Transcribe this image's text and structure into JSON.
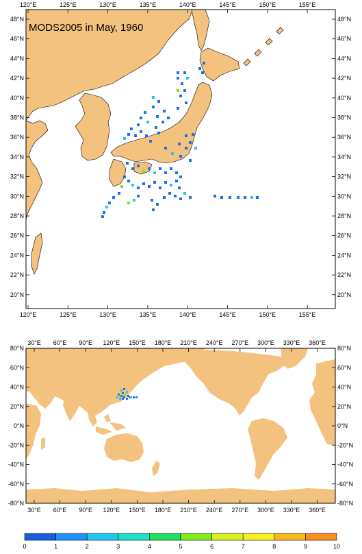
{
  "title": "MODS2005 in May, 1960",
  "top_map": {
    "lon_labels": [
      "120°E",
      "125°E",
      "130°E",
      "135°E",
      "140°E",
      "145°E",
      "150°E",
      "155°E"
    ],
    "lat_labels": [
      "48°N",
      "46°N",
      "44°N",
      "42°N",
      "40°N",
      "38°N",
      "36°N",
      "34°N",
      "32°N",
      "30°N",
      "28°N",
      "26°N",
      "24°N",
      "22°N",
      "20°N"
    ]
  },
  "bottom_map": {
    "lon_labels": [
      "30°E",
      "60°E",
      "90°E",
      "120°E",
      "150°E",
      "180°E",
      "210°E",
      "240°E",
      "270°E",
      "300°E",
      "330°E",
      "360°E"
    ],
    "lat_labels": [
      "80°N",
      "60°N",
      "40°N",
      "20°N",
      "0°N",
      "-20°N",
      "-40°N",
      "-60°N",
      "-80°N"
    ]
  },
  "colorbar": {
    "labels": [
      "0",
      "1",
      "2",
      "3",
      "4",
      "5",
      "6",
      "7",
      "8",
      "9",
      "10"
    ],
    "colors": [
      "#1a5fd8",
      "#1e90ff",
      "#20c8f0",
      "#20e0c8",
      "#20e060",
      "#80ec20",
      "#d8f020",
      "#f8f020",
      "#f8b820",
      "#f89020",
      "#e84810"
    ]
  },
  "colors": {
    "land": "#f2c27e",
    "obs_low": "#1e6fe8",
    "obs_mid": "#20c8f0",
    "obs_high": "#80e020"
  }
}
